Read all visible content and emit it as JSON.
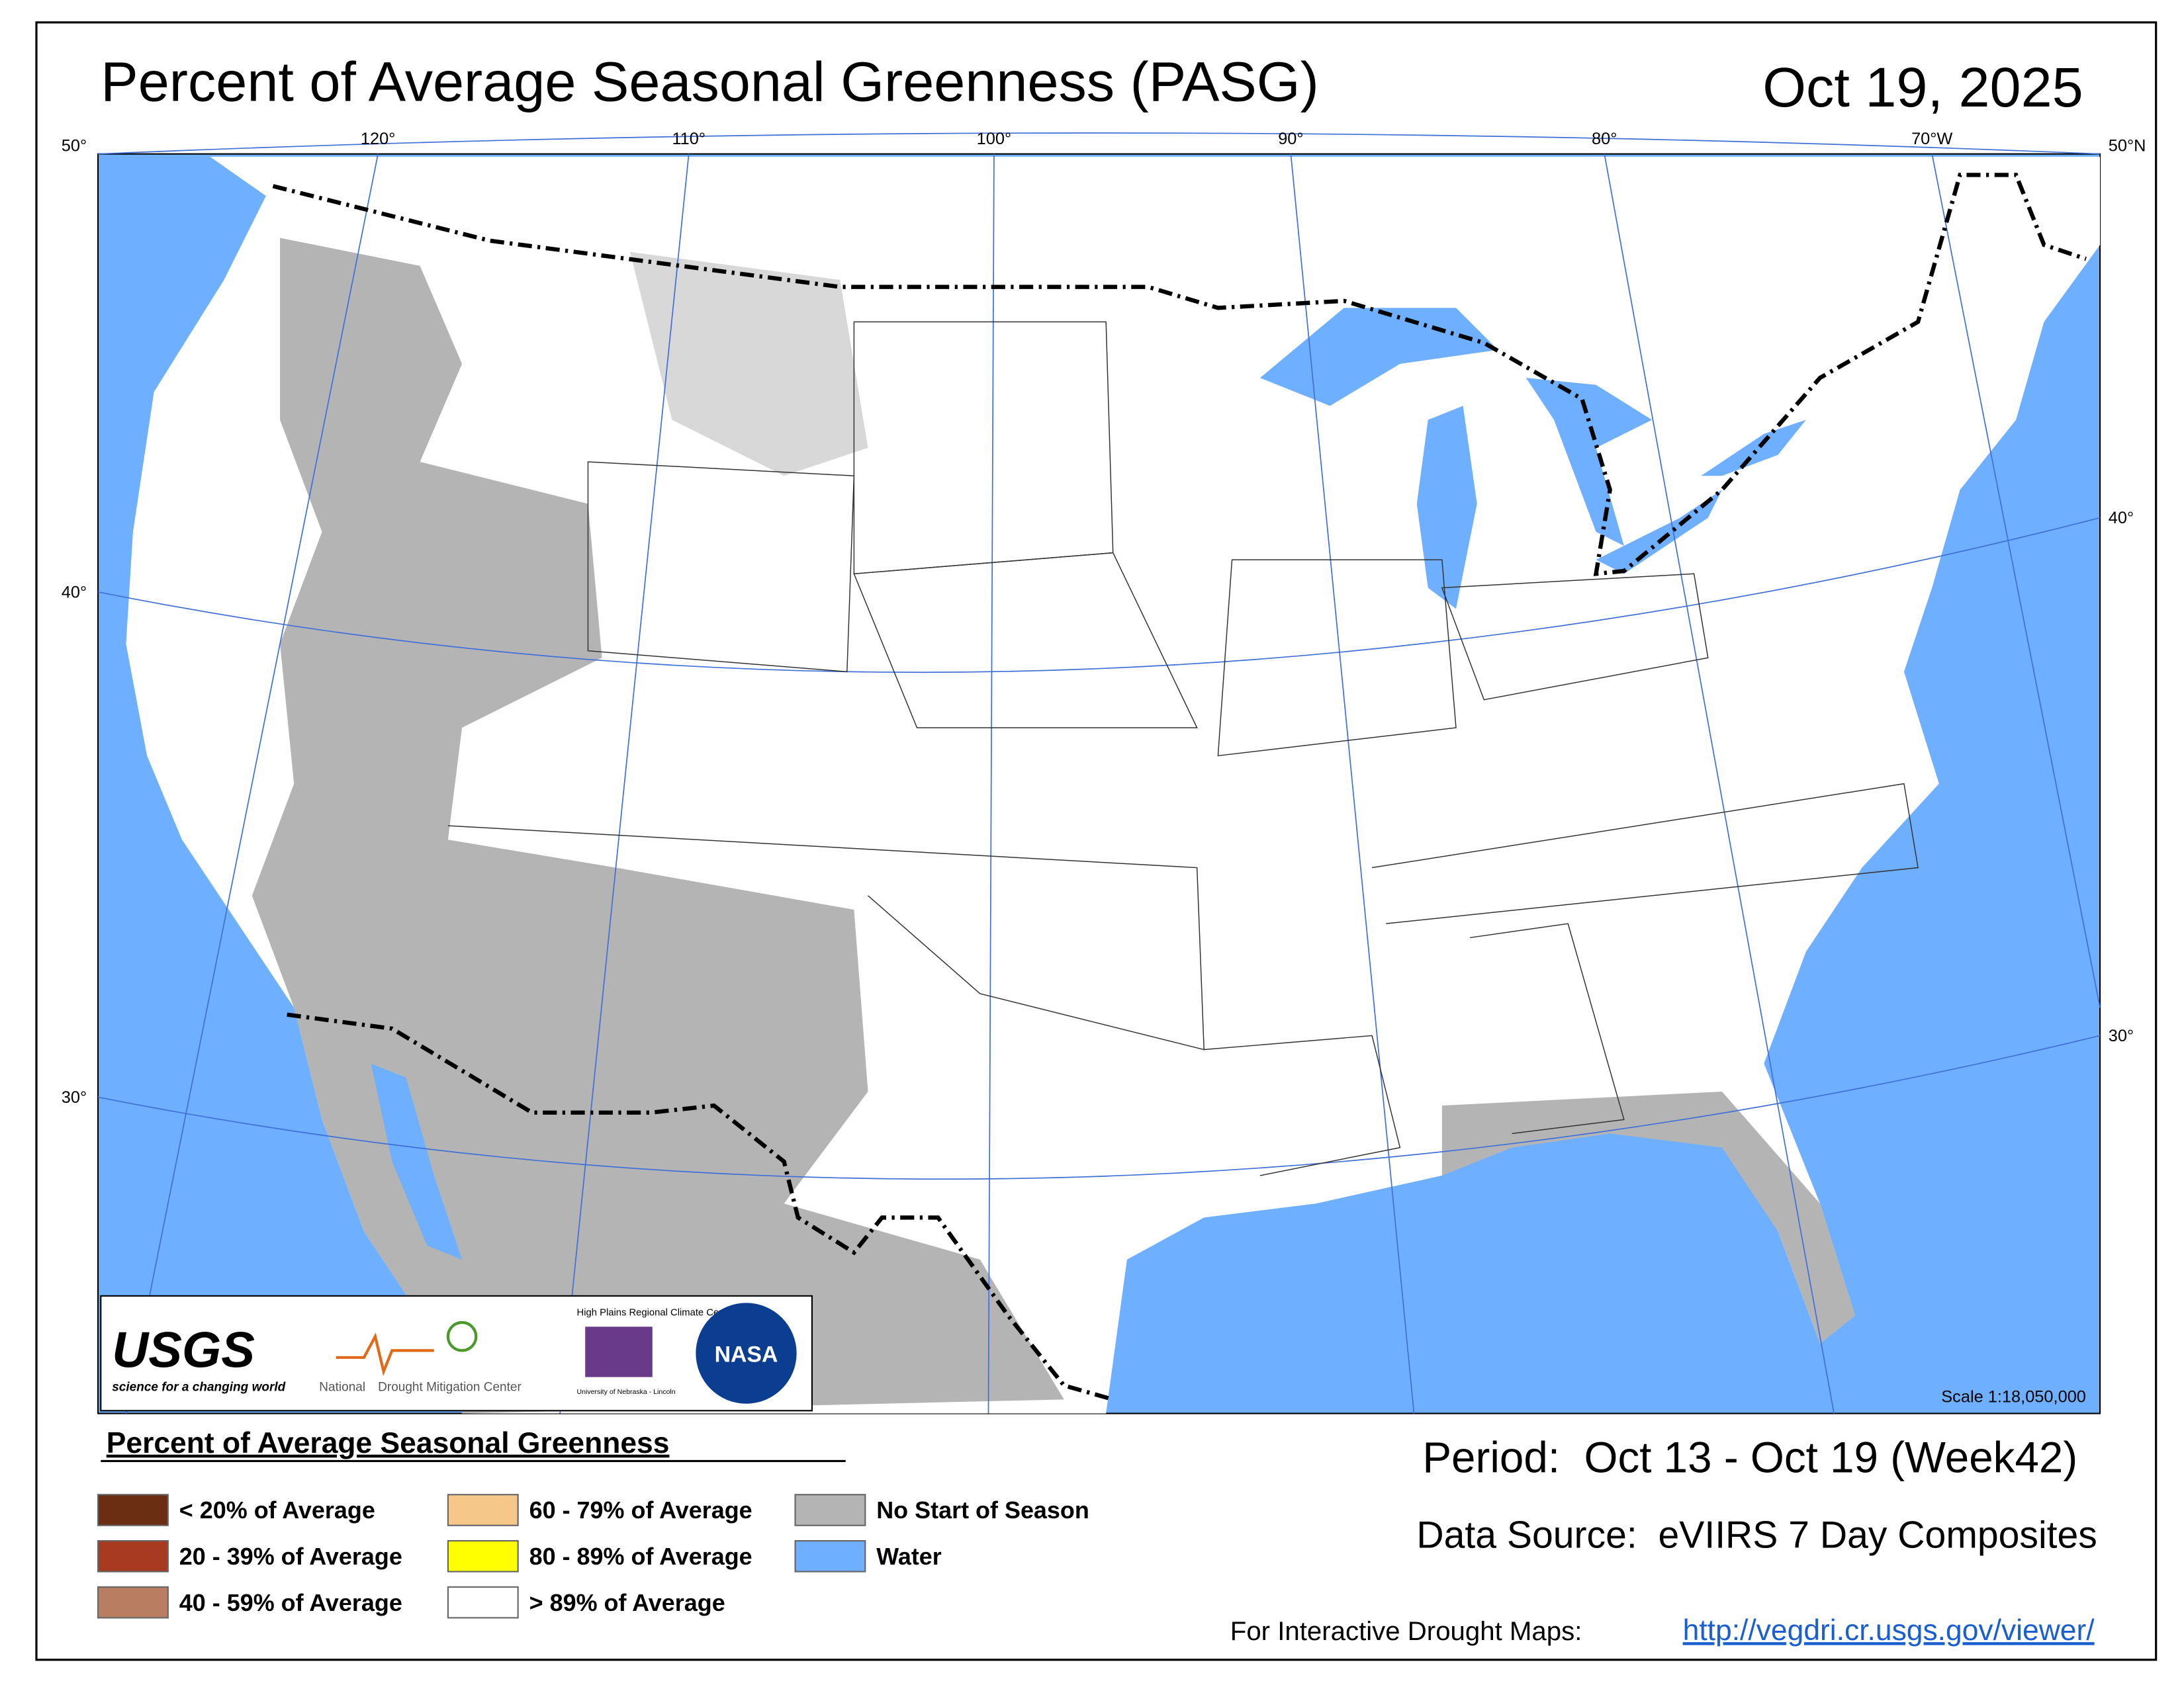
{
  "header": {
    "title": "Percent of Average Seasonal Greenness (PASG)",
    "date": "Oct 19, 2025"
  },
  "map": {
    "lon_labels": [
      "120°",
      "110°",
      "100°",
      "90°",
      "80°",
      "70°W"
    ],
    "lat_labels_left": [
      "50°",
      "40°",
      "30°"
    ],
    "lat_labels_right": [
      "50°N",
      "40°",
      "30°"
    ],
    "scale": "Scale 1:18,050,000"
  },
  "logos": {
    "usgs": "USGS",
    "usgs_tagline": "science for a changing world",
    "ndmc_prefix": "National",
    "ndmc": "Drought Mitigation Center",
    "hprcc": "High Plains Regional Climate Center",
    "hprcc_sub": "University of Nebraska - Lincoln",
    "nasa": "NASA"
  },
  "legend": {
    "title": "Percent of Average Seasonal Greenness",
    "items": [
      {
        "label": "< 20% of Average",
        "color": "#6b2e12"
      },
      {
        "label": "20 - 39% of Average",
        "color": "#a83a1f"
      },
      {
        "label": "40 - 59% of Average",
        "color": "#b97d62"
      },
      {
        "label": "60 - 79% of Average",
        "color": "#f5c88a"
      },
      {
        "label": "80 - 89% of Average",
        "color": "#ffff00"
      },
      {
        "label": "> 89% of Average",
        "color": "#ffffff"
      },
      {
        "label": "No Start of Season",
        "color": "#b4b4b4"
      },
      {
        "label": "Water",
        "color": "#6eb0ff"
      }
    ]
  },
  "footer": {
    "period": "Period:  Oct 13 - Oct 19 (Week42)",
    "source": "Data Source:  eVIIRS 7 Day Composites",
    "link_prompt": "For Interactive Drought Maps:",
    "link": "http://vegdri.cr.usgs.gov/viewer/"
  }
}
